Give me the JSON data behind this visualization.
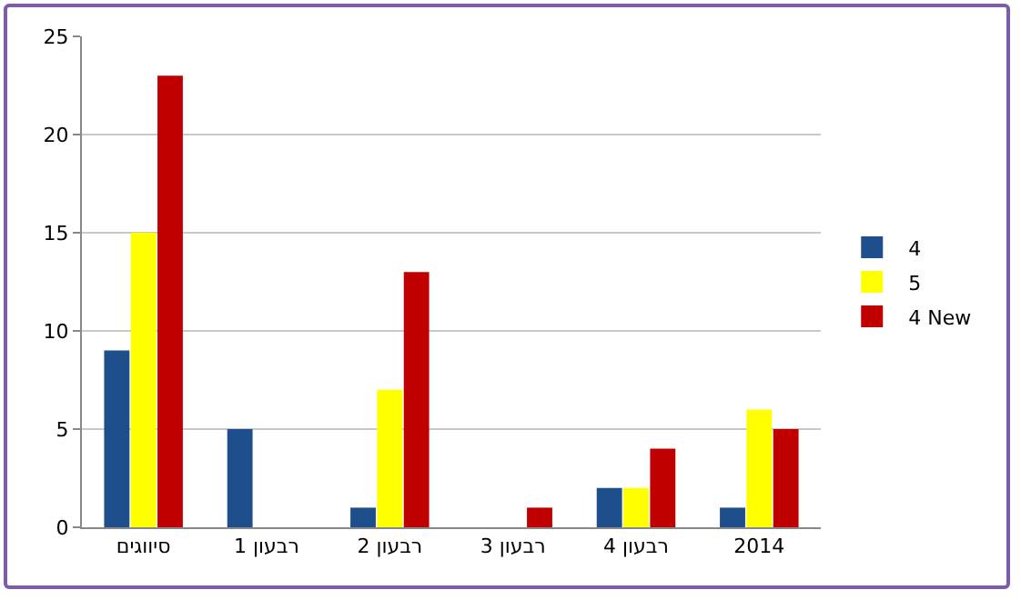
{
  "chart_data": {
    "type": "bar",
    "categories": [
      "סיווגים",
      "רבעון 1",
      "רבעון 2",
      "רבעון 3",
      "רבעון 4",
      "2014"
    ],
    "series": [
      {
        "name": "4",
        "color": "#1f4e8c",
        "values": [
          9,
          5,
          1,
          0,
          2,
          1
        ]
      },
      {
        "name": "5",
        "color": "#ffff00",
        "values": [
          15,
          0,
          7,
          0,
          2,
          6
        ]
      },
      {
        "name": "4 New",
        "color": "#c00000",
        "values": [
          23,
          0,
          13,
          1,
          4,
          5
        ]
      }
    ],
    "ylim": [
      0,
      25
    ],
    "yticks": [
      0,
      5,
      10,
      15,
      20,
      25
    ],
    "grid": "y",
    "legend": "right"
  }
}
